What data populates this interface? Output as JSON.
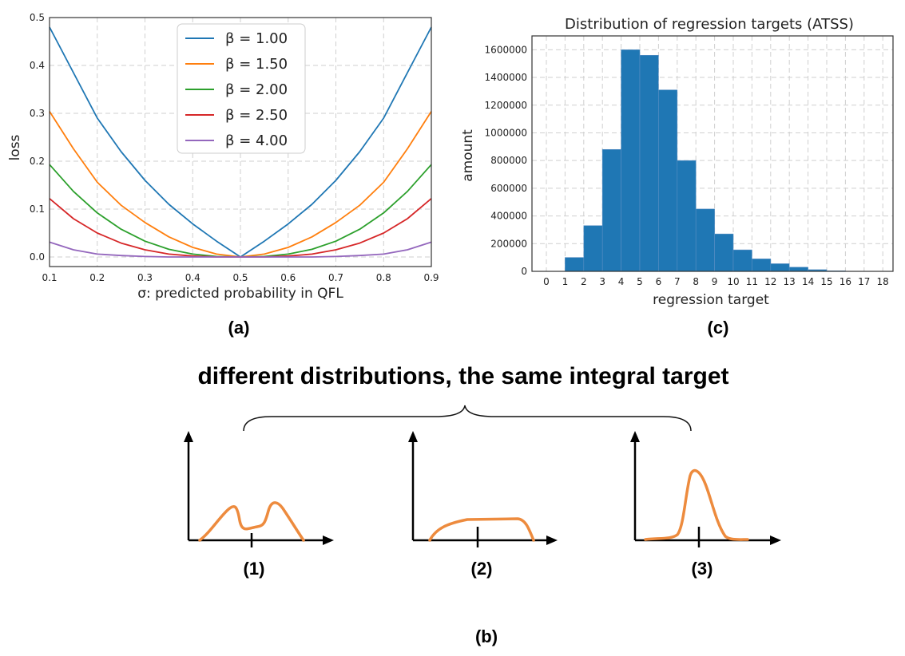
{
  "chart_data": [
    {
      "type": "line",
      "xlabel": "σ: predicted probability in QFL",
      "ylabel": "loss",
      "xlim": [
        0.1,
        0.9
      ],
      "ylim": [
        -0.02,
        0.5
      ],
      "xticks": [
        "0.1",
        "0.2",
        "0.3",
        "0.4",
        "0.5",
        "0.6",
        "0.7",
        "0.8",
        "0.9"
      ],
      "yticks": [
        "0.0",
        "0.1",
        "0.2",
        "0.3",
        "0.4",
        "0.5"
      ],
      "grid": true,
      "legend_position": "top-center",
      "series": [
        {
          "name": "β = 1.00",
          "beta": 1.0,
          "color": "#1f77b4"
        },
        {
          "name": "β = 1.50",
          "beta": 1.5,
          "color": "#ff7f0e"
        },
        {
          "name": "β = 2.00",
          "beta": 2.0,
          "color": "#2ca02c"
        },
        {
          "name": "β = 2.50",
          "beta": 2.5,
          "color": "#d62728"
        },
        {
          "name": "β = 4.00",
          "beta": 4.0,
          "color": "#9467bd"
        }
      ],
      "x": [
        0.1,
        0.15,
        0.2,
        0.25,
        0.3,
        0.35,
        0.4,
        0.45,
        0.5,
        0.55,
        0.6,
        0.65,
        0.7,
        0.75,
        0.8,
        0.85,
        0.9
      ],
      "series_values": [
        [
          0.48,
          0.385,
          0.29,
          0.22,
          0.16,
          0.11,
          0.069,
          0.033,
          0.0,
          0.033,
          0.069,
          0.11,
          0.16,
          0.22,
          0.29,
          0.385,
          0.48
        ],
        [
          0.304,
          0.226,
          0.156,
          0.108,
          0.072,
          0.042,
          0.02,
          0.006,
          0.0,
          0.006,
          0.02,
          0.042,
          0.072,
          0.108,
          0.156,
          0.226,
          0.304
        ],
        [
          0.193,
          0.137,
          0.092,
          0.058,
          0.033,
          0.016,
          0.006,
          0.001,
          0.0,
          0.001,
          0.006,
          0.016,
          0.033,
          0.058,
          0.092,
          0.137,
          0.193
        ],
        [
          0.122,
          0.08,
          0.05,
          0.029,
          0.015,
          0.006,
          0.002,
          0.0,
          0.0,
          0.0,
          0.002,
          0.006,
          0.015,
          0.029,
          0.05,
          0.08,
          0.122
        ],
        [
          0.031,
          0.015,
          0.006,
          0.003,
          0.001,
          0.0,
          0.0,
          0.0,
          0.0,
          0.0,
          0.0,
          0.0,
          0.001,
          0.003,
          0.006,
          0.015,
          0.031
        ]
      ]
    },
    {
      "type": "bar",
      "title": "Distribution of regression targets (ATSS)",
      "xlabel": "regression target",
      "ylabel": "amount",
      "xticks": [
        "0",
        "1",
        "2",
        "3",
        "4",
        "5",
        "6",
        "7",
        "8",
        "9",
        "10",
        "11",
        "12",
        "13",
        "14",
        "15",
        "16",
        "17",
        "18"
      ],
      "yticks": [
        "0",
        "200000",
        "400000",
        "600000",
        "800000",
        "1000000",
        "1200000",
        "1400000",
        "1600000"
      ],
      "ylim": [
        0,
        1700000
      ],
      "grid": true,
      "color": "#1f77b4",
      "bins": [
        [
          1,
          2
        ],
        [
          2,
          3
        ],
        [
          3,
          4
        ],
        [
          4,
          5
        ],
        [
          5,
          6
        ],
        [
          6,
          7
        ],
        [
          7,
          8
        ],
        [
          8,
          9
        ],
        [
          9,
          10
        ],
        [
          10,
          11
        ],
        [
          11,
          12
        ],
        [
          12,
          13
        ],
        [
          13,
          14
        ],
        [
          14,
          15
        ],
        [
          15,
          16
        ]
      ],
      "values": [
        100000,
        330000,
        880000,
        1600000,
        1560000,
        1310000,
        800000,
        450000,
        270000,
        155000,
        90000,
        55000,
        30000,
        12000,
        4000
      ]
    }
  ],
  "captions": {
    "a": "(a)",
    "b": "(b)",
    "c": "(c)",
    "one": "(1)",
    "two": "(2)",
    "three": "(3)"
  },
  "headline": "different distributions, the same integral target",
  "sketch_color": "#ed8b3e"
}
